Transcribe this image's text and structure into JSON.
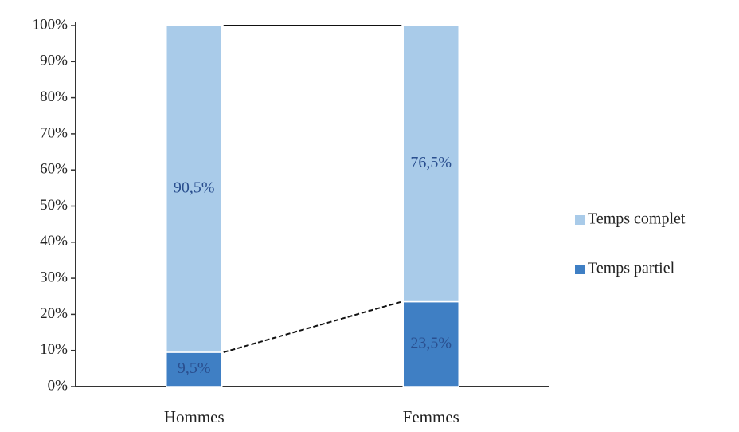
{
  "chart_data": {
    "type": "stacked_bar",
    "categories": [
      "Hommes",
      "Femmes"
    ],
    "series": [
      {
        "name": "Temps partiel",
        "color": "#3f7fc4",
        "values": [
          9.5,
          23.5
        ],
        "value_labels": [
          "9,5%",
          "23,5%"
        ]
      },
      {
        "name": "Temps complet",
        "color": "#a9cbe9",
        "values": [
          90.5,
          76.5
        ],
        "value_labels": [
          "90,5%",
          "76,5%"
        ]
      }
    ],
    "ylim": [
      0,
      100
    ],
    "yticks": [
      {
        "value": 0,
        "label": "0%"
      },
      {
        "value": 10,
        "label": "10%"
      },
      {
        "value": 20,
        "label": "20%"
      },
      {
        "value": 30,
        "label": "30%"
      },
      {
        "value": 40,
        "label": "40%"
      },
      {
        "value": 50,
        "label": "50%"
      },
      {
        "value": 60,
        "label": "60%"
      },
      {
        "value": 70,
        "label": "70%"
      },
      {
        "value": 80,
        "label": "80%"
      },
      {
        "value": 90,
        "label": "90%"
      },
      {
        "value": 100,
        "label": "100%"
      }
    ],
    "series_lines": true,
    "legend": "right"
  }
}
